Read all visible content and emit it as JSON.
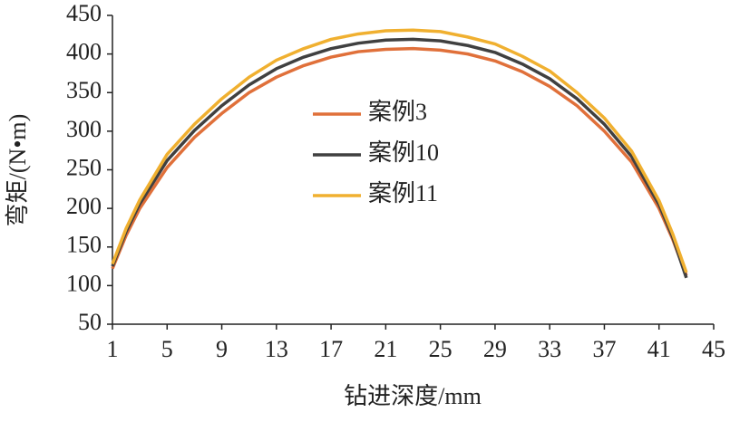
{
  "chart_data": {
    "type": "line",
    "x_label": "钻进深度/mm",
    "y_label": "弯矩/(N•m)",
    "x": [
      1,
      2,
      3,
      5,
      7,
      9,
      11,
      13,
      15,
      17,
      19,
      21,
      23,
      25,
      27,
      29,
      31,
      33,
      35,
      37,
      39,
      41,
      42,
      43
    ],
    "series": [
      {
        "name": "案例3",
        "color": "#e0703a",
        "values": [
          122,
          165,
          200,
          253,
          292,
          323,
          350,
          370,
          385,
          396,
          403,
          406,
          407,
          405,
          400,
          391,
          377,
          358,
          333,
          300,
          260,
          200,
          160,
          113
        ]
      },
      {
        "name": "案例10",
        "color": "#404040",
        "values": [
          125,
          170,
          206,
          262,
          301,
          333,
          360,
          381,
          396,
          407,
          414,
          418,
          419,
          417,
          411,
          402,
          387,
          368,
          342,
          309,
          267,
          205,
          163,
          110
        ]
      },
      {
        "name": "案例11",
        "color": "#f0b030",
        "values": [
          128,
          174,
          211,
          270,
          309,
          342,
          370,
          392,
          407,
          419,
          426,
          430,
          431,
          429,
          422,
          413,
          397,
          378,
          350,
          317,
          274,
          210,
          167,
          117
        ]
      }
    ],
    "xlim": [
      1,
      45
    ],
    "xticks": [
      1,
      5,
      9,
      13,
      17,
      21,
      25,
      29,
      33,
      37,
      41,
      45
    ],
    "ylim": [
      50,
      450
    ],
    "yticks": [
      50,
      100,
      150,
      200,
      250,
      300,
      350,
      400,
      450
    ]
  }
}
